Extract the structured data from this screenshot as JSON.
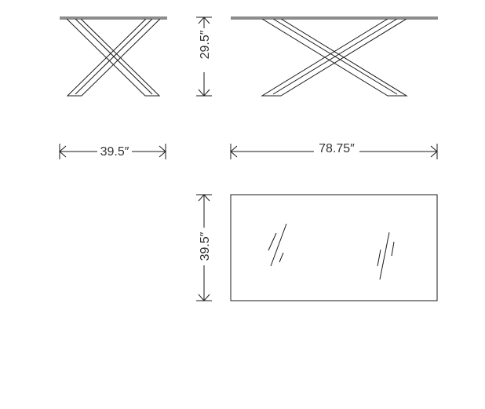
{
  "dimensions": {
    "side_width": "39.5″",
    "side_height": "29.5″",
    "front_length": "78.75″",
    "top_depth": "39.5″"
  },
  "colors": {
    "line": "#1a1a1a",
    "label": "#333333",
    "background": "#ffffff"
  }
}
